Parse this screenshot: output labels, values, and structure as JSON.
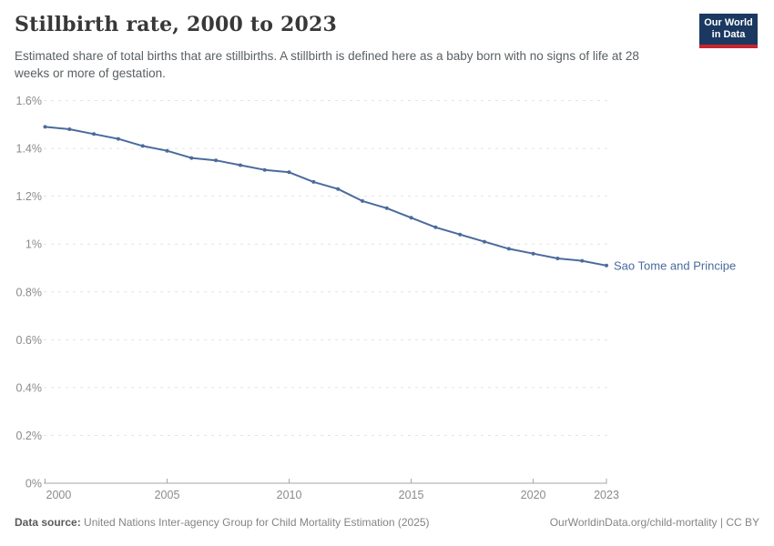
{
  "header": {
    "title": "Stillbirth rate, 2000 to 2023",
    "subtitle": "Estimated share of total births that are stillbirths. A stillbirth is defined here as a baby born with no signs of life at 28 weeks or more of gestation.",
    "logo": {
      "line1": "Our World",
      "line2": "in Data",
      "bg_color": "#1a3860",
      "stripe_color": "#c7252d",
      "text_color": "#ffffff"
    }
  },
  "chart_data": {
    "type": "line",
    "title": "Stillbirth rate, 2000 to 2023",
    "xlabel": "",
    "ylabel": "",
    "unit": "%",
    "ylim": [
      0,
      1.6
    ],
    "grid": "dashed-horizontal",
    "x": [
      2000,
      2001,
      2002,
      2003,
      2004,
      2005,
      2006,
      2007,
      2008,
      2009,
      2010,
      2011,
      2012,
      2013,
      2014,
      2015,
      2016,
      2017,
      2018,
      2019,
      2020,
      2021,
      2022,
      2023
    ],
    "series": [
      {
        "name": "Sao Tome and Principe",
        "color": "#4a6b9d",
        "values": [
          1.49,
          1.48,
          1.46,
          1.44,
          1.41,
          1.39,
          1.36,
          1.35,
          1.33,
          1.31,
          1.3,
          1.26,
          1.23,
          1.18,
          1.15,
          1.11,
          1.07,
          1.04,
          1.01,
          0.98,
          0.96,
          0.94,
          0.93,
          0.91
        ]
      }
    ],
    "yticks": [
      {
        "v": 0.0,
        "label": "0%"
      },
      {
        "v": 0.2,
        "label": "0.2%"
      },
      {
        "v": 0.4,
        "label": "0.4%"
      },
      {
        "v": 0.6,
        "label": "0.6%"
      },
      {
        "v": 0.8,
        "label": "0.8%"
      },
      {
        "v": 1.0,
        "label": "1%"
      },
      {
        "v": 1.2,
        "label": "1.2%"
      },
      {
        "v": 1.4,
        "label": "1.4%"
      },
      {
        "v": 1.6,
        "label": "1.6%"
      }
    ],
    "xticks": [
      2000,
      2005,
      2010,
      2015,
      2020,
      2023
    ],
    "legend_position": "end-of-line-label",
    "colors": {
      "gridline": "#e3e3e3",
      "axis": "#a5a5a5",
      "tick_label": "#8b8b8b"
    }
  },
  "footer": {
    "source_label": "Data source:",
    "source_value": "United Nations Inter-agency Group for Child Mortality Estimation (2025)",
    "link": "OurWorldinData.org/child-mortality | CC BY"
  }
}
